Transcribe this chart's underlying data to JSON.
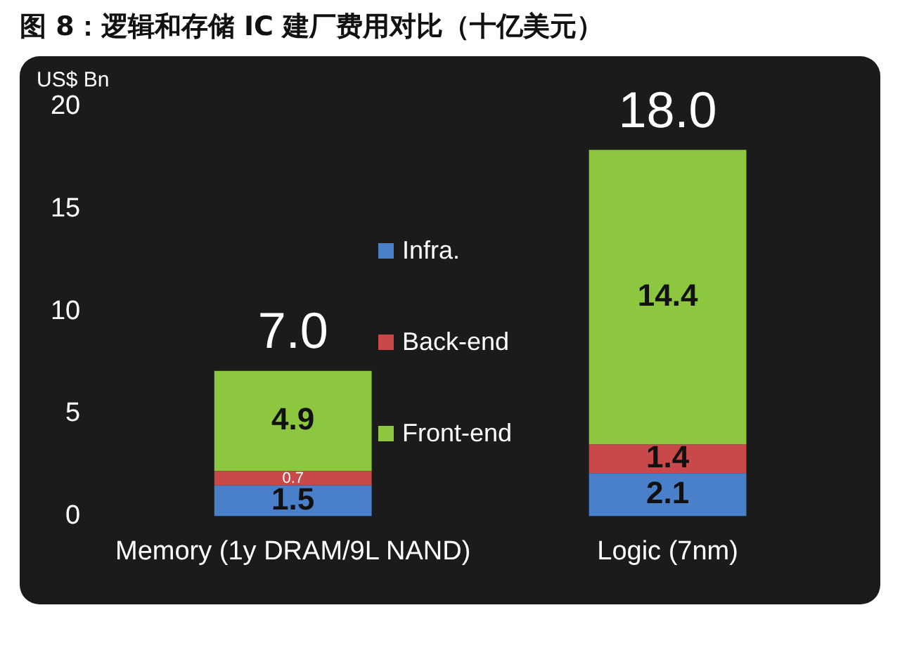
{
  "chart_data": {
    "type": "bar",
    "title": "图 8：逻辑和存储 IC 建厂费用对比（十亿美元）",
    "ylabel": "US$ Bn",
    "categories": [
      "Memory (1y DRAM/9L NAND)",
      "Logic (7nm)"
    ],
    "series": [
      {
        "name": "Infra.",
        "color": "#4a7fc9",
        "values": [
          1.5,
          2.1
        ]
      },
      {
        "name": "Back-end",
        "color": "#c9484a",
        "values": [
          0.7,
          1.4
        ]
      },
      {
        "name": "Front-end",
        "color": "#8dc63f",
        "values": [
          4.9,
          14.4
        ]
      }
    ],
    "stacked": true,
    "ylim": [
      0,
      20
    ],
    "yticks": [
      0,
      5,
      10,
      15,
      20
    ],
    "grid": false,
    "legend": "center",
    "data_labels": true,
    "totals": [
      "7.0",
      "18.0"
    ]
  }
}
